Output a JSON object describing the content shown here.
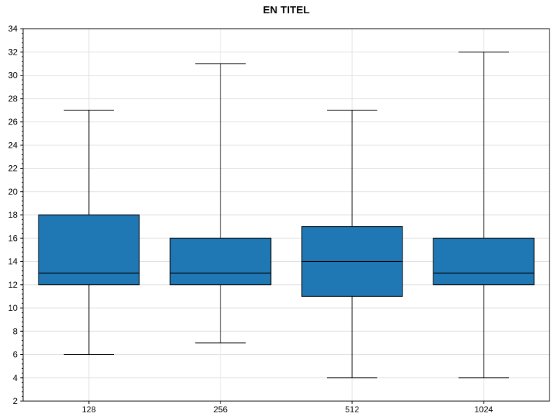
{
  "chart_data": {
    "type": "box",
    "title": "EN TITEL",
    "xlabel": "",
    "ylabel": "",
    "categories": [
      "128",
      "256",
      "512",
      "1024"
    ],
    "boxes": [
      {
        "min": 6,
        "q1": 12,
        "median": 13,
        "q3": 18,
        "max": 27
      },
      {
        "min": 7,
        "q1": 12,
        "median": 13,
        "q3": 16,
        "max": 31
      },
      {
        "min": 4,
        "q1": 11,
        "median": 14,
        "q3": 17,
        "max": 27
      },
      {
        "min": 4,
        "q1": 12,
        "median": 13,
        "q3": 16,
        "max": 32
      }
    ],
    "ylim": [
      2,
      34
    ],
    "yticks": [
      2,
      4,
      6,
      8,
      10,
      12,
      14,
      16,
      18,
      20,
      22,
      24,
      26,
      28,
      30,
      32,
      34
    ],
    "grid": true,
    "box_color": "#1f77b4",
    "line_color": "#000000"
  }
}
